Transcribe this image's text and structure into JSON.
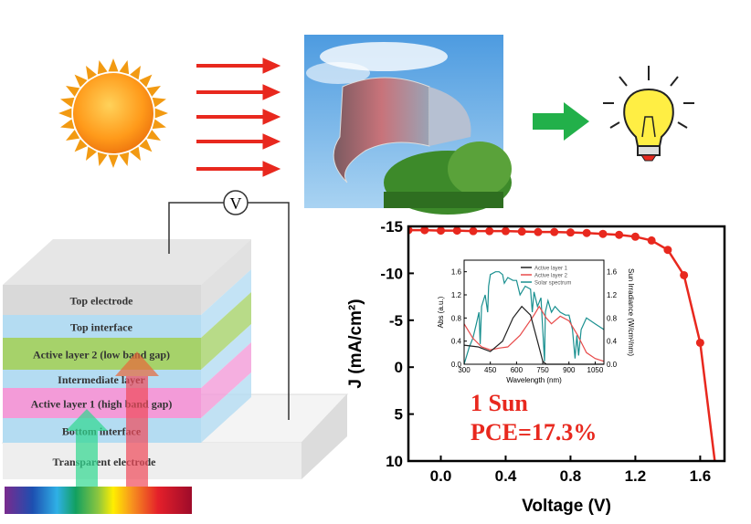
{
  "voltmeter_label": "V",
  "layers": [
    {
      "label": "Top electrode",
      "color": "#d9d9d9"
    },
    {
      "label": "Top interface",
      "color": "#b4dcf2"
    },
    {
      "label": "Active layer 2 (low band gap)",
      "color": "#a6d26a"
    },
    {
      "label": "Intermediate layer",
      "color": "#b4dcf2"
    },
    {
      "label": "Active layer 1 (high band gap)",
      "color": "#f39bd8"
    },
    {
      "label": "Bottom interface",
      "color": "#b4dcf2"
    },
    {
      "label": "Transparent electrode",
      "color": "#eeeeee"
    }
  ],
  "annotation": {
    "line1": "1 Sun",
    "line2": "PCE=17.3%",
    "color": "#e8281e"
  },
  "chart_data": [
    {
      "type": "line",
      "xlabel": "Voltage (V)",
      "ylabel": "J (mA/cm²)",
      "xlim": [
        -0.2,
        1.75
      ],
      "ylim": [
        -15,
        10
      ],
      "y_inverted": true,
      "xticks": [
        "0.0",
        "0.4",
        "0.8",
        "1.2",
        "1.6"
      ],
      "xtick_values": [
        0,
        0.4,
        0.8,
        1.2,
        1.6
      ],
      "yticks": [
        "-15",
        "-10",
        "-5",
        "0",
        "5",
        "10"
      ],
      "ytick_values": [
        -15,
        -10,
        -5,
        0,
        5,
        10
      ],
      "color": "#e8281e",
      "x": [
        -0.2,
        -0.1,
        0.0,
        0.1,
        0.2,
        0.3,
        0.4,
        0.5,
        0.6,
        0.7,
        0.8,
        0.9,
        1.0,
        1.1,
        1.2,
        1.3,
        1.4,
        1.5,
        1.6,
        1.69
      ],
      "y": [
        -14.6,
        -14.6,
        -14.55,
        -14.55,
        -14.5,
        -14.5,
        -14.5,
        -14.45,
        -14.4,
        -14.4,
        -14.35,
        -14.3,
        -14.2,
        -14.1,
        -13.9,
        -13.5,
        -12.5,
        -9.8,
        -2.6,
        10
      ]
    },
    {
      "type": "line",
      "xlabel": "Wavelength (nm)",
      "ylabel": "Abs (a.u.)",
      "y2label": "Sun Irradiance (W/cm²/nm)",
      "xlim": [
        300,
        1100
      ],
      "ylim": [
        0,
        1.8
      ],
      "xticks": [
        "300",
        "450",
        "600",
        "750",
        "900",
        "1050"
      ],
      "xtick_values": [
        300,
        450,
        600,
        750,
        900,
        1050
      ],
      "yticks": [
        "0.0",
        "0.4",
        "0.8",
        "1.2",
        "1.6"
      ],
      "ytick_values": [
        0,
        0.4,
        0.8,
        1.2,
        1.6
      ],
      "legend": "top-right",
      "series": [
        {
          "name": "Active layer 1",
          "color": "#222222",
          "x": [
            300,
            380,
            450,
            520,
            580,
            630,
            680,
            720,
            750,
            770,
            1100
          ],
          "y": [
            0.33,
            0.3,
            0.22,
            0.4,
            0.8,
            1.0,
            0.85,
            0.4,
            0.05,
            0,
            0
          ]
        },
        {
          "name": "Active layer 2",
          "color": "#e84a4a",
          "x": [
            300,
            350,
            400,
            450,
            500,
            550,
            620,
            700,
            730,
            770,
            800,
            850,
            900,
            950,
            1000,
            1050,
            1100
          ],
          "y": [
            0.7,
            0.45,
            0.3,
            0.25,
            0.28,
            0.3,
            0.5,
            0.85,
            1.0,
            0.8,
            0.7,
            0.83,
            0.75,
            0.5,
            0.2,
            0.1,
            0.05
          ]
        },
        {
          "name": "Solar spectrum",
          "color": "#1a9090",
          "x": [
            300,
            330,
            350,
            370,
            385,
            392,
            400,
            420,
            435,
            440,
            450,
            480,
            500,
            520,
            530,
            550,
            580,
            600,
            620,
            650,
            680,
            690,
            700,
            720,
            740,
            760,
            765,
            780,
            800,
            820,
            850,
            880,
            900,
            920,
            935,
            945,
            955,
            970,
            1000,
            1050,
            1100
          ],
          "y": [
            0,
            0.3,
            0.45,
            0.7,
            0.9,
            0.35,
            1.0,
            1.2,
            0.9,
            1.35,
            1.55,
            1.6,
            1.6,
            1.55,
            1.4,
            1.5,
            1.45,
            1.45,
            1.2,
            1.35,
            1.3,
            0.9,
            1.25,
            1.0,
            1.15,
            0.05,
            0.9,
            1.1,
            0.9,
            1.0,
            0.9,
            0.85,
            0.85,
            0.6,
            0.1,
            0.5,
            0.15,
            0.6,
            0.8,
            0.7,
            0.6
          ]
        }
      ]
    }
  ]
}
